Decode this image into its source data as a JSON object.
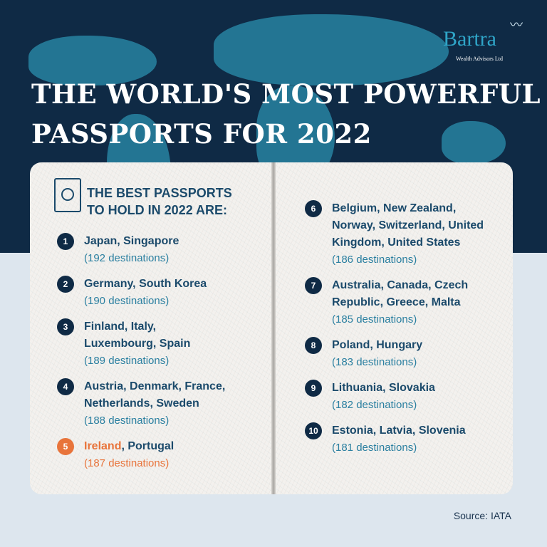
{
  "logo": {
    "brand": "Bartra",
    "subtitle": "Wealth Advisors Ltd"
  },
  "title": {
    "line1": "THE WORLD'S MOST POWERFUL",
    "line2": "PASSPORTS FOR 2022"
  },
  "heading": {
    "line1": "THE BEST PASSPORTS",
    "line2": "TO HOLD IN 2022 ARE:",
    "icon": "passport-icon"
  },
  "left_items": [
    {
      "rank": "1",
      "countries": "Japan, Singapore",
      "destinations": "(192 destinations)"
    },
    {
      "rank": "2",
      "countries": "Germany, South Korea",
      "destinations": "(190 destinations)"
    },
    {
      "rank": "3",
      "countries": "Finland, Italy, Luxembourg, Spain",
      "destinations": "(189 destinations)"
    },
    {
      "rank": "4",
      "countries": "Austria, Denmark, France, Netherlands, Sweden",
      "destinations": "(188 destinations)"
    }
  ],
  "highlight": {
    "rank": "5",
    "country1": "Ireland",
    "country2": ", Portugal",
    "destinations": "(187 destinations)",
    "color": "#e8743b"
  },
  "right_items": [
    {
      "rank": "6",
      "countries": "Belgium, New Zealand, Norway, Switzerland, United Kingdom, United States",
      "destinations": "(186 destinations)"
    },
    {
      "rank": "7",
      "countries": "Australia, Canada, Czech Republic, Greece, Malta",
      "destinations": "(185 destinations)"
    },
    {
      "rank": "8",
      "countries": "Poland, Hungary",
      "destinations": "(183 destinations)"
    },
    {
      "rank": "9",
      "countries": "Lithuania, Slovakia",
      "destinations": "(182 destinations)"
    },
    {
      "rank": "10",
      "countries": "Estonia, Latvia, Slovenia",
      "destinations": "(181 destinations)"
    }
  ],
  "source": "Source: IATA",
  "colors": {
    "navy": "#0f2a45",
    "heading": "#1b4a6b",
    "destinations": "#2a7fa0",
    "highlight": "#e8743b"
  }
}
